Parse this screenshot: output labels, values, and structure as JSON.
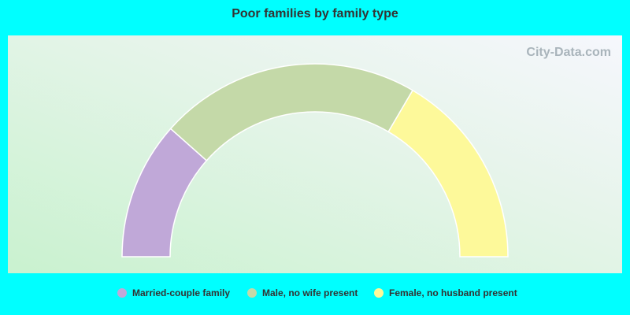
{
  "chart_data": {
    "type": "pie",
    "title": "Poor families by family type",
    "watermark": "City-Data.com",
    "categories": [
      "Married-couple family",
      "Male, no wife present",
      "Female, no husband present"
    ],
    "values": [
      23.1,
      43.8,
      33.1
    ],
    "colors": [
      "#c0a8d8",
      "#c4d9a8",
      "#fdf99a"
    ]
  }
}
